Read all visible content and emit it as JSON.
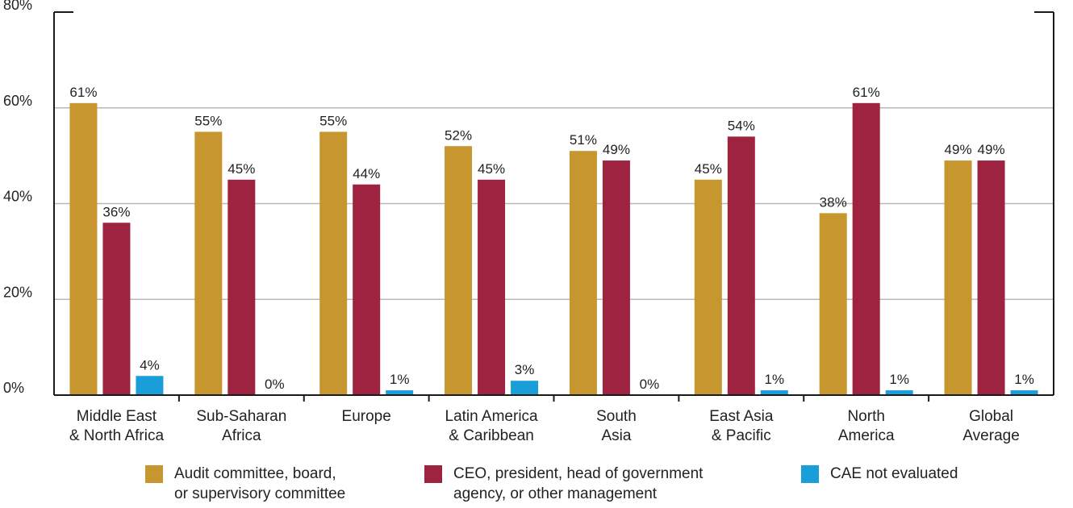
{
  "chart_data": {
    "type": "bar",
    "categories": [
      [
        "Middle East",
        "& North Africa"
      ],
      [
        "Sub-Saharan",
        "Africa"
      ],
      [
        "Europe"
      ],
      [
        "Latin America",
        "& Caribbean"
      ],
      [
        "South",
        "Asia"
      ],
      [
        "East Asia",
        "& Pacific"
      ],
      [
        "North",
        "America"
      ],
      [
        "Global",
        "Average"
      ]
    ],
    "series": [
      {
        "name": "Audit committee, board,\nor supervisory committee",
        "color": "#C8962E",
        "values": [
          61,
          55,
          55,
          52,
          51,
          45,
          38,
          49
        ],
        "labels": [
          "61%",
          "55%",
          "55%",
          "52%",
          "51%",
          "45%",
          "38%",
          "49%"
        ]
      },
      {
        "name": "CEO, president, head of government\nagency, or other management",
        "color": "#9E2340",
        "values": [
          36,
          45,
          44,
          45,
          49,
          54,
          61,
          49
        ],
        "labels": [
          "36%",
          "45%",
          "44%",
          "45%",
          "49%",
          "54%",
          "61%",
          "49%"
        ]
      },
      {
        "name": "CAE not evaluated",
        "color": "#1A9ED9",
        "values": [
          4,
          0,
          1,
          3,
          0,
          1,
          1,
          1
        ],
        "labels": [
          "4%",
          "0%",
          "1%",
          "3%",
          "0%",
          "1%",
          "1%",
          "1%"
        ]
      }
    ],
    "ylim": [
      0,
      80
    ],
    "yticks": [
      0,
      20,
      40,
      60,
      80
    ],
    "ytick_labels": [
      "0%",
      "20%",
      "40%",
      "60%",
      "80%"
    ],
    "grid": true,
    "legend_position": "bottom"
  }
}
